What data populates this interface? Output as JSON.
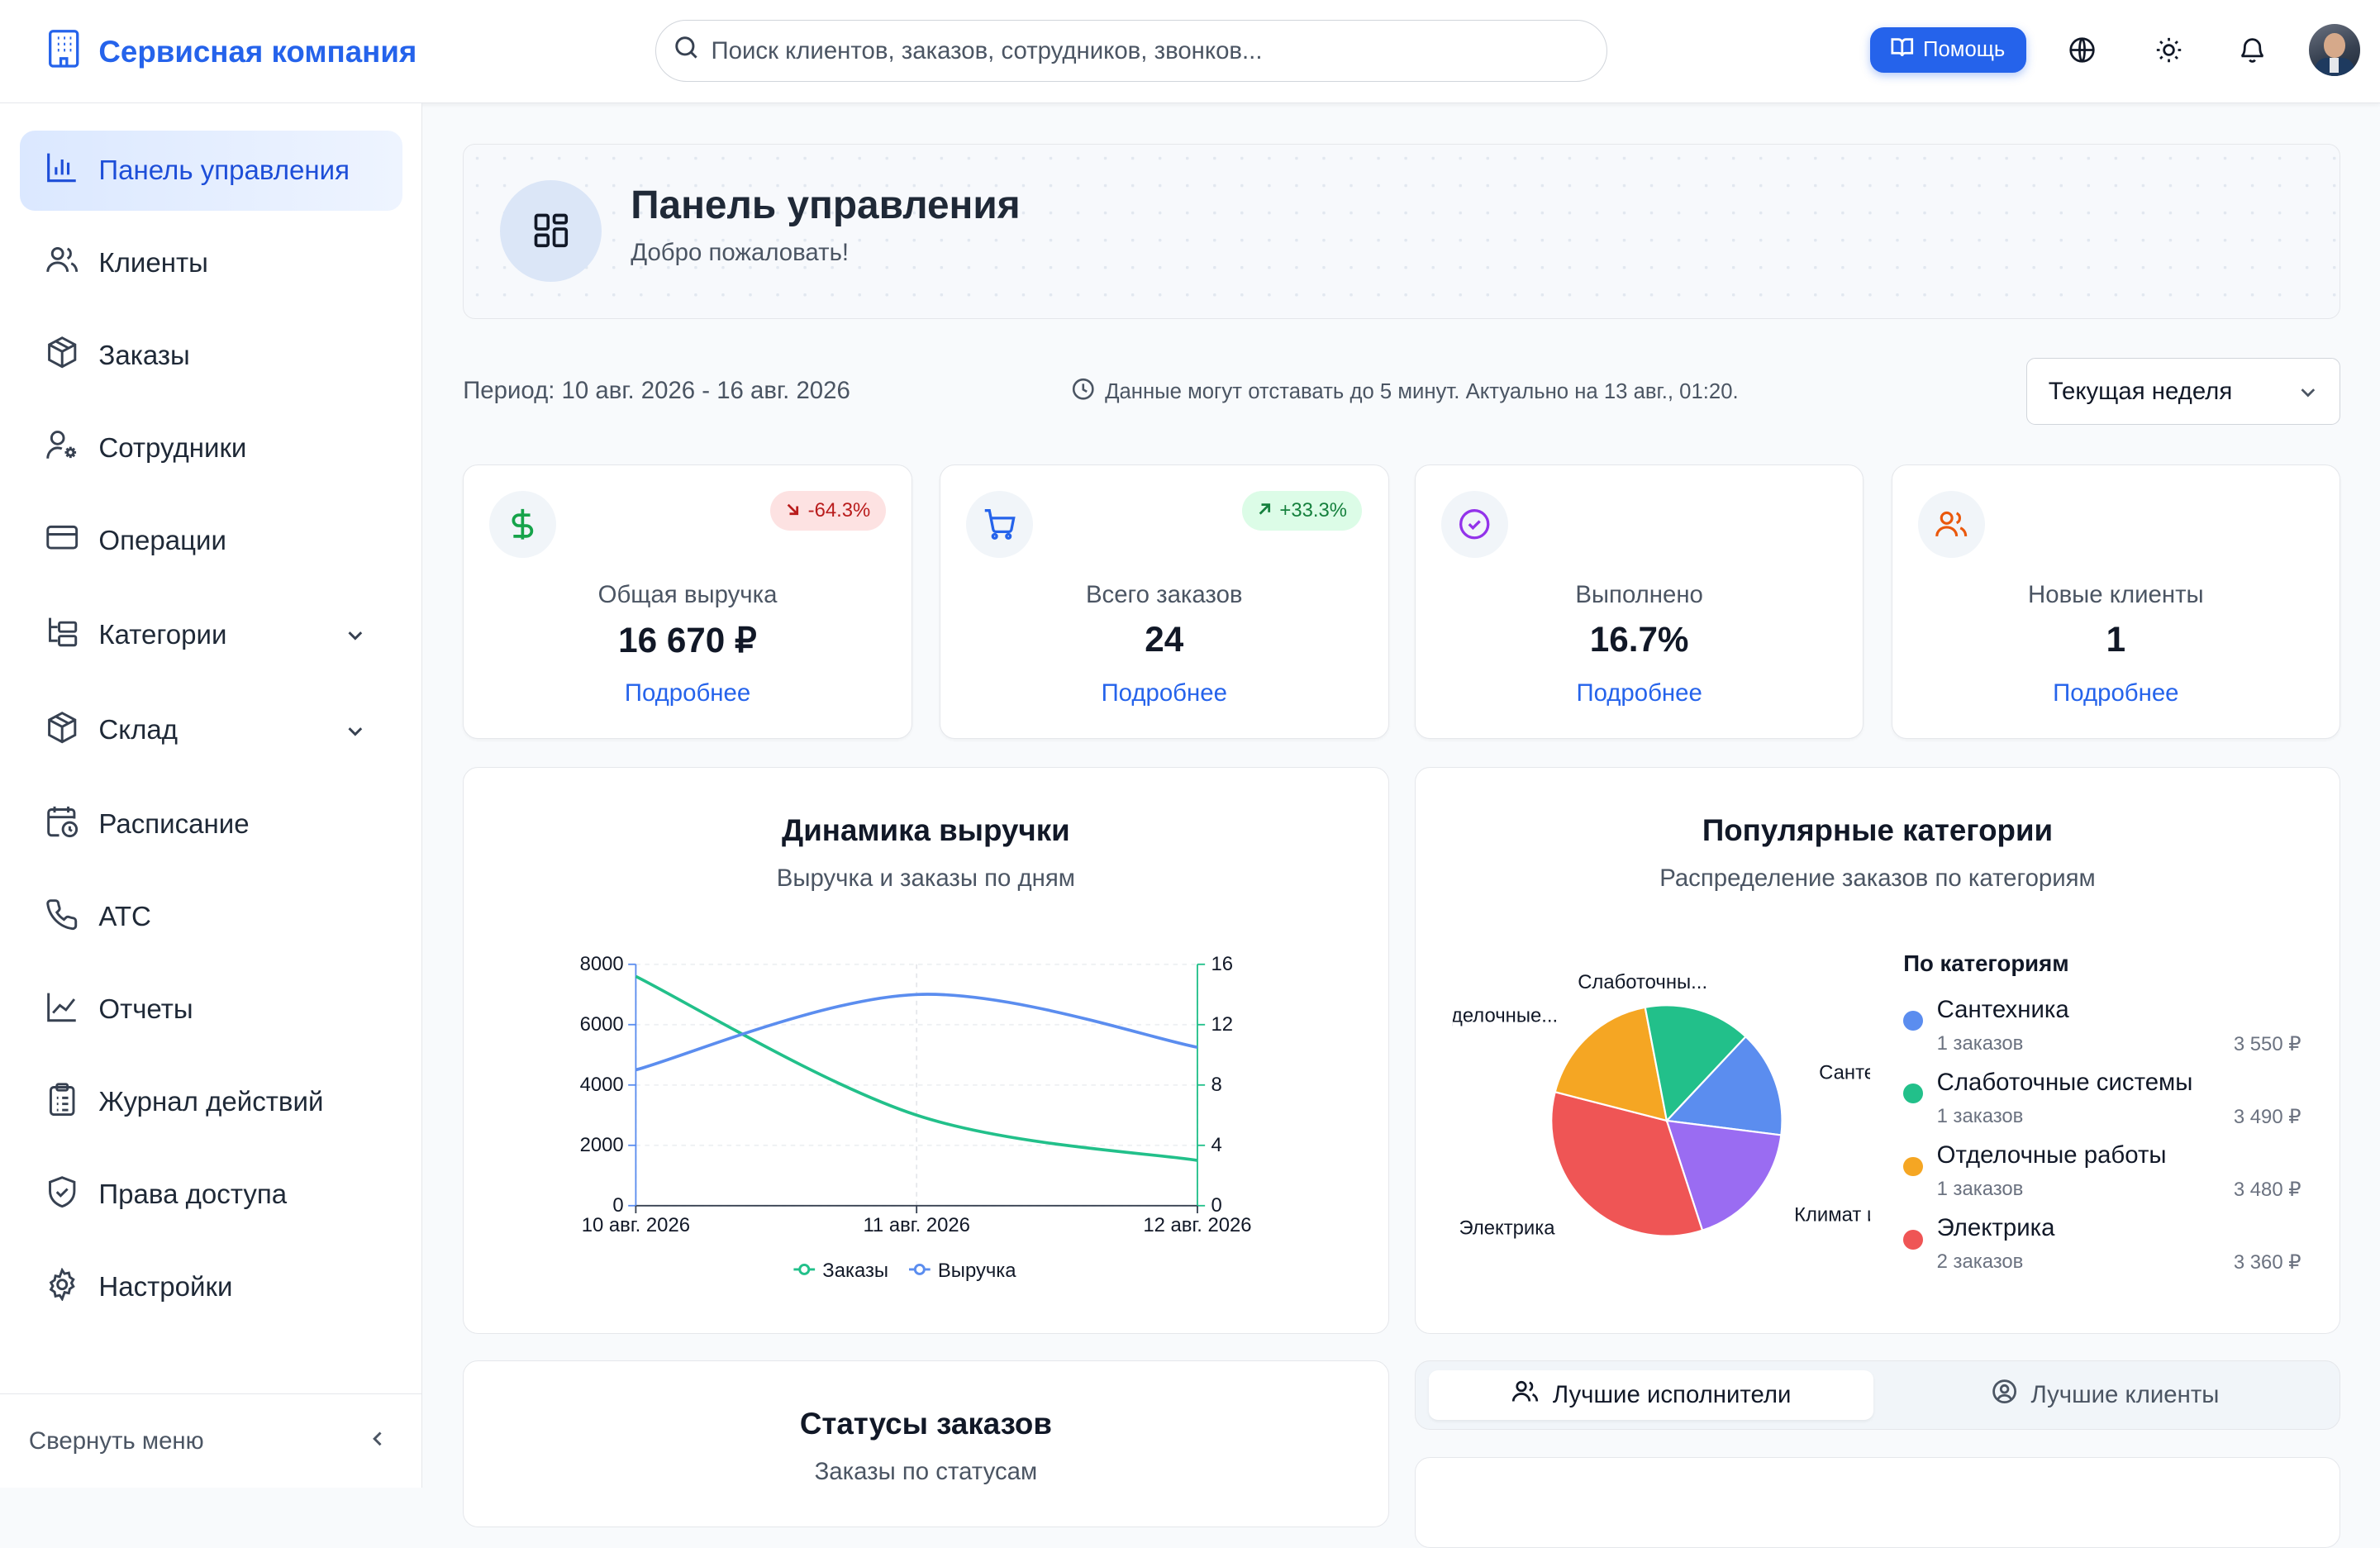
{
  "header": {
    "brand": "Сервисная компания",
    "search_placeholder": "Поиск клиентов, заказов, сотрудников, звонков...",
    "help_label": "Помощь",
    "icons": [
      "building-icon",
      "search-icon",
      "book-icon",
      "globe-icon",
      "sun-icon",
      "bell-icon"
    ]
  },
  "sidebar": {
    "items": [
      {
        "label": "Панель управления",
        "icon": "bar-chart-icon",
        "active": true
      },
      {
        "label": "Клиенты",
        "icon": "users-icon"
      },
      {
        "label": "Заказы",
        "icon": "package-icon"
      },
      {
        "label": "Сотрудники",
        "icon": "user-cog-icon"
      },
      {
        "label": "Операции",
        "icon": "credit-card-icon"
      },
      {
        "label": "Категории",
        "icon": "folder-tree-icon",
        "expandable": true
      },
      {
        "label": "Склад",
        "icon": "box-icon",
        "expandable": true
      },
      {
        "label": "Расписание",
        "icon": "calendar-clock-icon"
      },
      {
        "label": "АТС",
        "icon": "phone-icon"
      },
      {
        "label": "Отчеты",
        "icon": "line-chart-icon"
      },
      {
        "label": "Журнал действий",
        "icon": "clipboard-icon"
      },
      {
        "label": "Права доступа",
        "icon": "shield-check-icon"
      },
      {
        "label": "Настройки",
        "icon": "gear-icon"
      }
    ],
    "collapse_label": "Свернуть меню"
  },
  "welcome": {
    "title": "Панель управления",
    "subtitle": "Добро пожаловать!"
  },
  "period": {
    "text": "Период: 10 авг. 2026 - 16 авг. 2026",
    "freshness": "Данные могут отставать до 5 минут. Актуально на 13 авг., 01:20.",
    "selected": "Текущая неделя"
  },
  "kpis": [
    {
      "label": "Общая выручка",
      "value": "16 670 ₽",
      "badge": "-64.3%",
      "trend": "down",
      "link": "Подробнее",
      "icon": "dollar-icon"
    },
    {
      "label": "Всего заказов",
      "value": "24",
      "badge": "+33.3%",
      "trend": "up",
      "link": "Подробнее",
      "icon": "cart-icon"
    },
    {
      "label": "Выполнено",
      "value": "16.7%",
      "link": "Подробнее",
      "icon": "check-circle-icon"
    },
    {
      "label": "Новые клиенты",
      "value": "1",
      "link": "Подробнее",
      "icon": "users-icon"
    }
  ],
  "revenue_chart": {
    "title": "Динамика выручки",
    "subtitle": "Выручка и заказы по дням"
  },
  "categories_card": {
    "title": "Популярные категории",
    "subtitle": "Распределение заказов по категориям",
    "legend_title": "По категориям",
    "items": [
      {
        "name": "Сантехника",
        "count": "1 заказов",
        "sum": "3 550 ₽",
        "color": "#5b8def"
      },
      {
        "name": "Слаботочные системы",
        "count": "1 заказов",
        "sum": "3 490 ₽",
        "color": "#22c08a"
      },
      {
        "name": "Отделочные работы",
        "count": "1 заказов",
        "sum": "3 480 ₽",
        "color": "#f5a623"
      },
      {
        "name": "Электрика",
        "count": "2 заказов",
        "sum": "3 360 ₽",
        "color": "#ef5555"
      }
    ]
  },
  "status_card": {
    "title": "Статусы заказов",
    "subtitle": "Заказы по статусам"
  },
  "tabs": {
    "active": "Лучшие исполнители",
    "inactive": "Лучшие клиенты"
  },
  "chart_data": [
    {
      "type": "line",
      "x": [
        "10 авг. 2026",
        "11 авг. 2026",
        "12 авг. 2026"
      ],
      "series": [
        {
          "name": "Заказы",
          "axis": "left",
          "color": "#22c08a",
          "values": [
            7600,
            3000,
            1500
          ]
        },
        {
          "name": "Выручка",
          "axis": "right",
          "color": "#5b8def",
          "values": [
            9,
            14,
            10.5
          ]
        }
      ],
      "y_left": {
        "ticks": [
          0,
          2000,
          4000,
          6000,
          8000
        ],
        "range": [
          0,
          8000
        ]
      },
      "y_right": {
        "ticks": [
          0,
          4,
          8,
          12,
          16
        ],
        "range": [
          0,
          16
        ]
      },
      "legend": "bottom",
      "smooth": true
    },
    {
      "type": "pie",
      "labels": [
        "Сантехника",
        "Климат и...",
        "Электрика",
        "Отделочные...",
        "Слаботочны..."
      ],
      "values": [
        15,
        18,
        34,
        18,
        15
      ],
      "colors": [
        "#5b8def",
        "#9a6cf2",
        "#ef5555",
        "#f5a623",
        "#22c08a"
      ]
    }
  ]
}
